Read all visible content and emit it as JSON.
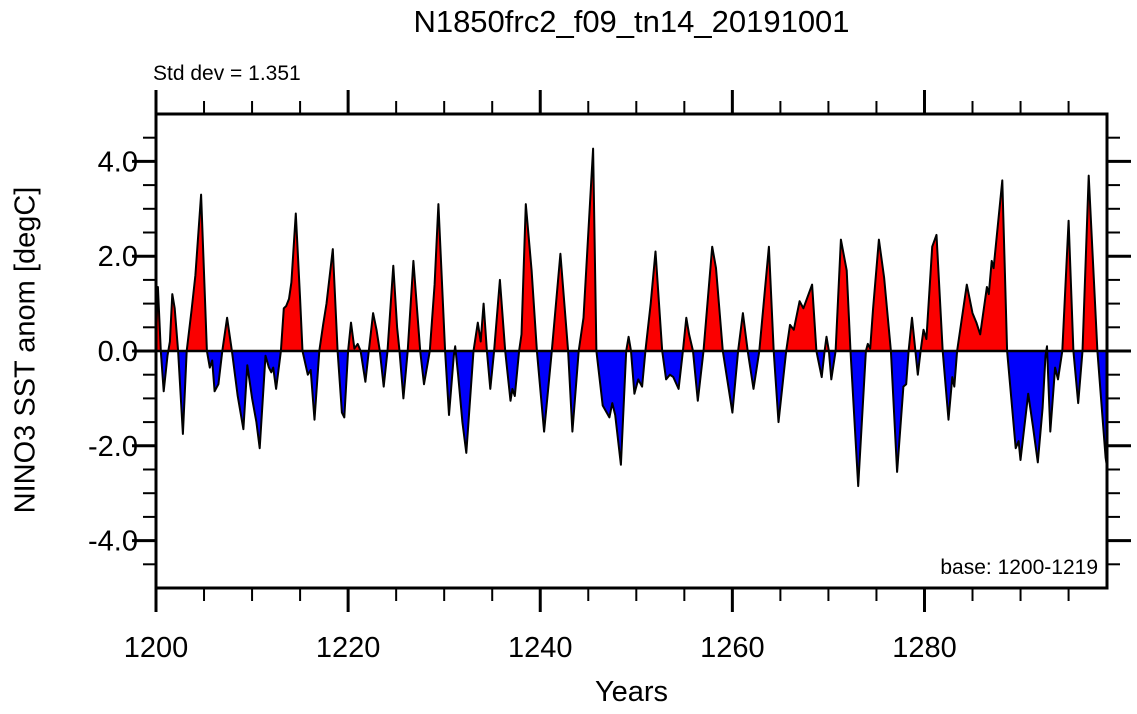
{
  "chart_data": {
    "type": "area",
    "title": "N1850frc2_f09_tn14_20191001",
    "xlabel": "Years",
    "ylabel": "NINO3 SST anom [degC]",
    "annotations": {
      "std_dev": 1.351,
      "std_dev_label": "Std dev = 1.351",
      "base_period_label": "base: 1200-1219",
      "base_period": [
        1200,
        1219
      ]
    },
    "xlim": [
      1200,
      1299
    ],
    "ylim": [
      -5,
      5
    ],
    "x_major_ticks": {
      "values": [
        1200,
        1220,
        1240,
        1260,
        1280
      ],
      "labels": [
        "1200",
        "1220",
        "1240",
        "1260",
        "1280"
      ]
    },
    "y_major_ticks": {
      "values": [
        -4,
        -2,
        0,
        2,
        4
      ],
      "labels": [
        "-4.0",
        "-2.0",
        "0.0",
        "2.0",
        "4.0"
      ]
    },
    "x_minor_step": 5,
    "y_minor_step": 0.5,
    "grid": false,
    "legend": "none",
    "colors": {
      "positive_fill": "#fb0000",
      "negative_fill": "#0000fb",
      "line": "#000000",
      "frame": "#000000",
      "background": "#ffffff"
    },
    "series": [
      {
        "name": "NINO3 SST anomaly",
        "units": "degC",
        "style": "filled area, red above zero, blue below zero, black outline",
        "points": [
          [
            1200.0,
            0.3
          ],
          [
            1200.2,
            1.35
          ],
          [
            1200.5,
            0.0
          ],
          [
            1200.8,
            -0.85
          ],
          [
            1201.2,
            -0.1
          ],
          [
            1201.45,
            0.2
          ],
          [
            1201.7,
            1.2
          ],
          [
            1201.95,
            0.9
          ],
          [
            1202.3,
            0.0
          ],
          [
            1202.8,
            -1.75
          ],
          [
            1203.2,
            0.0
          ],
          [
            1203.7,
            0.85
          ],
          [
            1204.1,
            1.6
          ],
          [
            1204.7,
            3.3
          ],
          [
            1205.3,
            0.0
          ],
          [
            1205.6,
            -0.35
          ],
          [
            1205.85,
            -0.2
          ],
          [
            1206.1,
            -0.85
          ],
          [
            1206.5,
            -0.7
          ],
          [
            1206.9,
            0.0
          ],
          [
            1207.4,
            0.7
          ],
          [
            1207.9,
            0.0
          ],
          [
            1208.5,
            -0.95
          ],
          [
            1209.1,
            -1.65
          ],
          [
            1209.5,
            -0.3
          ],
          [
            1210.0,
            -1.0
          ],
          [
            1210.45,
            -1.5
          ],
          [
            1210.8,
            -2.05
          ],
          [
            1211.4,
            -0.1
          ],
          [
            1211.75,
            -0.35
          ],
          [
            1212.0,
            -0.45
          ],
          [
            1212.2,
            -0.35
          ],
          [
            1212.5,
            -0.8
          ],
          [
            1213.0,
            0.0
          ],
          [
            1213.3,
            0.9
          ],
          [
            1213.55,
            0.95
          ],
          [
            1213.85,
            1.1
          ],
          [
            1214.1,
            1.45
          ],
          [
            1214.55,
            2.9
          ],
          [
            1215.0,
            1.1
          ],
          [
            1215.25,
            0.0
          ],
          [
            1215.8,
            -0.5
          ],
          [
            1216.1,
            -0.4
          ],
          [
            1216.5,
            -1.45
          ],
          [
            1217.0,
            0.0
          ],
          [
            1217.4,
            0.55
          ],
          [
            1217.75,
            1.0
          ],
          [
            1218.4,
            2.15
          ],
          [
            1218.9,
            0.0
          ],
          [
            1219.35,
            -1.3
          ],
          [
            1219.6,
            -1.4
          ],
          [
            1220.0,
            0.0
          ],
          [
            1220.3,
            0.6
          ],
          [
            1220.65,
            0.05
          ],
          [
            1221.0,
            0.15
          ],
          [
            1221.3,
            0.0
          ],
          [
            1221.8,
            -0.65
          ],
          [
            1222.15,
            0.0
          ],
          [
            1222.6,
            0.8
          ],
          [
            1222.95,
            0.45
          ],
          [
            1223.3,
            0.0
          ],
          [
            1223.7,
            -0.75
          ],
          [
            1224.1,
            0.0
          ],
          [
            1224.7,
            1.8
          ],
          [
            1225.1,
            0.5
          ],
          [
            1225.35,
            0.0
          ],
          [
            1225.75,
            -1.0
          ],
          [
            1226.2,
            0.0
          ],
          [
            1226.8,
            1.9
          ],
          [
            1227.5,
            0.0
          ],
          [
            1227.9,
            -0.7
          ],
          [
            1228.5,
            0.0
          ],
          [
            1229.0,
            1.4
          ],
          [
            1229.4,
            3.1
          ],
          [
            1230.1,
            0.0
          ],
          [
            1230.5,
            -1.35
          ],
          [
            1231.0,
            -0.1
          ],
          [
            1231.15,
            0.1
          ],
          [
            1231.45,
            -0.5
          ],
          [
            1231.9,
            -1.5
          ],
          [
            1232.3,
            -2.15
          ],
          [
            1233.05,
            0.0
          ],
          [
            1233.5,
            0.6
          ],
          [
            1233.8,
            0.2
          ],
          [
            1234.1,
            1.0
          ],
          [
            1234.45,
            0.0
          ],
          [
            1234.8,
            -0.8
          ],
          [
            1235.2,
            0.0
          ],
          [
            1235.8,
            1.5
          ],
          [
            1236.35,
            0.0
          ],
          [
            1236.9,
            -1.05
          ],
          [
            1237.1,
            -0.8
          ],
          [
            1237.35,
            -0.95
          ],
          [
            1237.8,
            0.0
          ],
          [
            1238.05,
            0.35
          ],
          [
            1238.5,
            3.1
          ],
          [
            1239.1,
            1.7
          ],
          [
            1239.65,
            0.0
          ],
          [
            1240.4,
            -1.7
          ],
          [
            1241.2,
            0.0
          ],
          [
            1242.1,
            2.05
          ],
          [
            1242.9,
            0.0
          ],
          [
            1243.35,
            -1.7
          ],
          [
            1244.0,
            0.0
          ],
          [
            1244.5,
            0.7
          ],
          [
            1245.5,
            4.27
          ],
          [
            1245.85,
            0.0
          ],
          [
            1246.5,
            -1.15
          ],
          [
            1247.2,
            -1.4
          ],
          [
            1247.5,
            -1.1
          ],
          [
            1247.8,
            -1.35
          ],
          [
            1248.4,
            -2.4
          ],
          [
            1248.95,
            0.0
          ],
          [
            1249.2,
            0.3
          ],
          [
            1249.45,
            0.0
          ],
          [
            1249.8,
            -0.9
          ],
          [
            1250.2,
            -0.6
          ],
          [
            1250.6,
            -0.75
          ],
          [
            1250.95,
            0.0
          ],
          [
            1251.5,
            1.0
          ],
          [
            1252.0,
            2.1
          ],
          [
            1252.7,
            0.0
          ],
          [
            1253.1,
            -0.6
          ],
          [
            1253.5,
            -0.5
          ],
          [
            1253.85,
            -0.55
          ],
          [
            1254.4,
            -0.8
          ],
          [
            1254.85,
            0.0
          ],
          [
            1255.2,
            0.7
          ],
          [
            1255.5,
            0.35
          ],
          [
            1255.9,
            0.0
          ],
          [
            1256.4,
            -1.05
          ],
          [
            1257.0,
            0.0
          ],
          [
            1257.9,
            2.2
          ],
          [
            1258.3,
            1.75
          ],
          [
            1259.0,
            0.0
          ],
          [
            1260.0,
            -1.3
          ],
          [
            1260.6,
            0.0
          ],
          [
            1261.1,
            0.8
          ],
          [
            1261.6,
            0.0
          ],
          [
            1262.2,
            -0.8
          ],
          [
            1262.8,
            0.0
          ],
          [
            1263.8,
            2.2
          ],
          [
            1264.3,
            0.0
          ],
          [
            1264.8,
            -1.5
          ],
          [
            1265.6,
            0.0
          ],
          [
            1266.0,
            0.55
          ],
          [
            1266.4,
            0.45
          ],
          [
            1267.0,
            1.05
          ],
          [
            1267.4,
            0.9
          ],
          [
            1268.3,
            1.4
          ],
          [
            1268.75,
            0.0
          ],
          [
            1269.3,
            -0.55
          ],
          [
            1269.6,
            0.0
          ],
          [
            1269.8,
            0.3
          ],
          [
            1270.05,
            0.0
          ],
          [
            1270.3,
            -0.6
          ],
          [
            1270.75,
            0.0
          ],
          [
            1271.3,
            2.35
          ],
          [
            1271.9,
            1.7
          ],
          [
            1272.3,
            0.0
          ],
          [
            1273.1,
            -2.85
          ],
          [
            1273.9,
            0.0
          ],
          [
            1274.1,
            0.15
          ],
          [
            1274.35,
            0.05
          ],
          [
            1274.65,
            0.9
          ],
          [
            1275.25,
            2.35
          ],
          [
            1275.8,
            1.55
          ],
          [
            1276.5,
            0.0
          ],
          [
            1277.15,
            -2.55
          ],
          [
            1277.8,
            -0.75
          ],
          [
            1278.1,
            -0.7
          ],
          [
            1278.35,
            0.0
          ],
          [
            1278.7,
            0.7
          ],
          [
            1279.05,
            0.0
          ],
          [
            1279.3,
            -0.5
          ],
          [
            1279.6,
            0.0
          ],
          [
            1279.9,
            0.45
          ],
          [
            1280.2,
            0.25
          ],
          [
            1280.8,
            2.2
          ],
          [
            1281.25,
            2.45
          ],
          [
            1281.9,
            0.0
          ],
          [
            1282.5,
            -1.45
          ],
          [
            1282.9,
            -0.55
          ],
          [
            1283.1,
            -0.75
          ],
          [
            1283.4,
            0.0
          ],
          [
            1284.4,
            1.4
          ],
          [
            1285.0,
            0.8
          ],
          [
            1285.4,
            0.6
          ],
          [
            1285.8,
            0.35
          ],
          [
            1286.5,
            1.35
          ],
          [
            1286.7,
            1.2
          ],
          [
            1287.0,
            1.9
          ],
          [
            1287.2,
            1.75
          ],
          [
            1288.1,
            3.6
          ],
          [
            1288.6,
            0.0
          ],
          [
            1289.5,
            -2.05
          ],
          [
            1289.8,
            -1.9
          ],
          [
            1290.0,
            -2.3
          ],
          [
            1290.8,
            -0.9
          ],
          [
            1291.3,
            -1.6
          ],
          [
            1291.8,
            -2.35
          ],
          [
            1292.3,
            -1.2
          ],
          [
            1292.6,
            -0.1
          ],
          [
            1292.75,
            0.1
          ],
          [
            1293.1,
            -1.7
          ],
          [
            1293.6,
            -0.35
          ],
          [
            1293.9,
            -0.6
          ],
          [
            1294.35,
            0.0
          ],
          [
            1295.0,
            2.75
          ],
          [
            1295.5,
            0.0
          ],
          [
            1296.0,
            -1.1
          ],
          [
            1296.45,
            0.0
          ],
          [
            1297.1,
            3.7
          ],
          [
            1298.0,
            0.0
          ],
          [
            1298.85,
            -2.25
          ],
          [
            1299.0,
            -2.45
          ]
        ]
      }
    ]
  }
}
